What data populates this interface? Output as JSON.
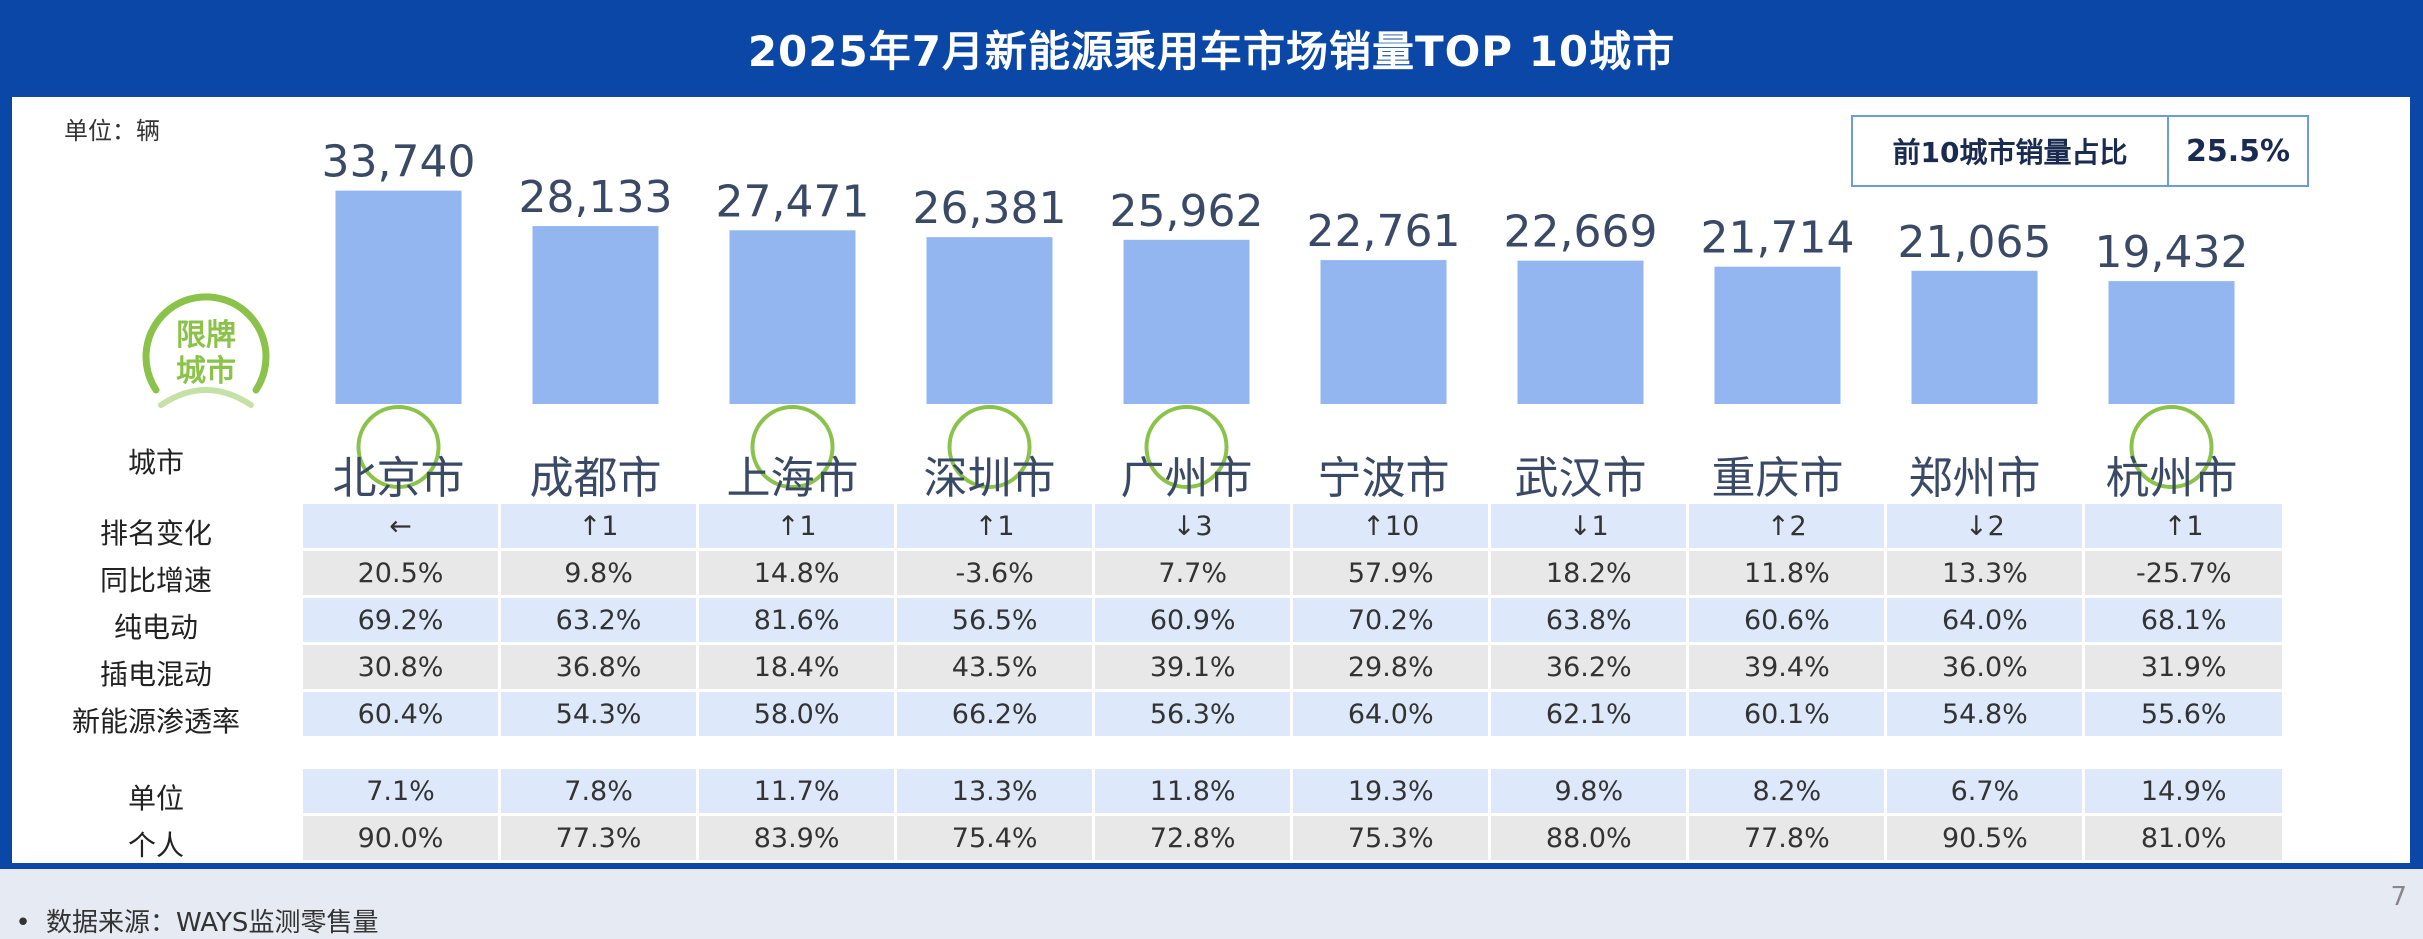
{
  "header": {
    "title": "2025年7月新能源乘用车市场销量TOP 10城市"
  },
  "unit_label": "单位：辆",
  "share_box": {
    "label": "前10城市销量占比",
    "value": "25.5%"
  },
  "restricted_badge": {
    "line1": "限牌",
    "line2": "城市"
  },
  "colors": {
    "header": "#0a47a6",
    "bar": "#93b6f0",
    "restricted": "#8bc34a"
  },
  "chart_data": {
    "type": "bar",
    "categories": [
      "北京市",
      "成都市",
      "上海市",
      "深圳市",
      "广州市",
      "宁波市",
      "武汉市",
      "重庆市",
      "郑州市",
      "杭州市"
    ],
    "values": [
      33740,
      28133,
      27471,
      26381,
      25962,
      22761,
      22669,
      21714,
      21065,
      19432
    ],
    "value_labels": [
      "33,740",
      "28,133",
      "27,471",
      "26,381",
      "25,962",
      "22,761",
      "22,669",
      "21,714",
      "21,065",
      "19,432"
    ],
    "restricted": [
      true,
      false,
      true,
      true,
      true,
      false,
      false,
      false,
      false,
      true
    ],
    "ylim": [
      0,
      34000
    ]
  },
  "table": {
    "city_row_label": "城市",
    "rows": [
      {
        "label": "排名变化",
        "style": "blue",
        "values": [
          "←",
          "↑1",
          "↑1",
          "↑1",
          "↓3",
          "↑10",
          "↓1",
          "↑2",
          "↓2",
          "↑1"
        ]
      },
      {
        "label": "同比增速",
        "style": "gray",
        "values": [
          "20.5%",
          "9.8%",
          "14.8%",
          "-3.6%",
          "7.7%",
          "57.9%",
          "18.2%",
          "11.8%",
          "13.3%",
          "-25.7%"
        ]
      },
      {
        "label": "纯电动",
        "style": "blue",
        "values": [
          "69.2%",
          "63.2%",
          "81.6%",
          "56.5%",
          "60.9%",
          "70.2%",
          "63.8%",
          "60.6%",
          "64.0%",
          "68.1%"
        ]
      },
      {
        "label": "插电混动",
        "style": "gray",
        "values": [
          "30.8%",
          "36.8%",
          "18.4%",
          "43.5%",
          "39.1%",
          "29.8%",
          "36.2%",
          "39.4%",
          "36.0%",
          "31.9%"
        ]
      },
      {
        "label": "新能源渗透率",
        "style": "blue",
        "values": [
          "60.4%",
          "54.3%",
          "58.0%",
          "66.2%",
          "56.3%",
          "64.0%",
          "62.1%",
          "60.1%",
          "54.8%",
          "55.6%"
        ]
      }
    ],
    "rows2": [
      {
        "label": "单位",
        "style": "blue",
        "values": [
          "7.1%",
          "7.8%",
          "11.7%",
          "13.3%",
          "11.8%",
          "19.3%",
          "9.8%",
          "8.2%",
          "6.7%",
          "14.9%"
        ]
      },
      {
        "label": "个人",
        "style": "gray",
        "values": [
          "90.0%",
          "77.3%",
          "83.9%",
          "75.4%",
          "72.8%",
          "75.3%",
          "88.0%",
          "77.8%",
          "90.5%",
          "81.0%"
        ]
      }
    ]
  },
  "footer": {
    "bullet": "•",
    "source": "数据来源：WAYS监测零售量",
    "page_number": "7"
  }
}
